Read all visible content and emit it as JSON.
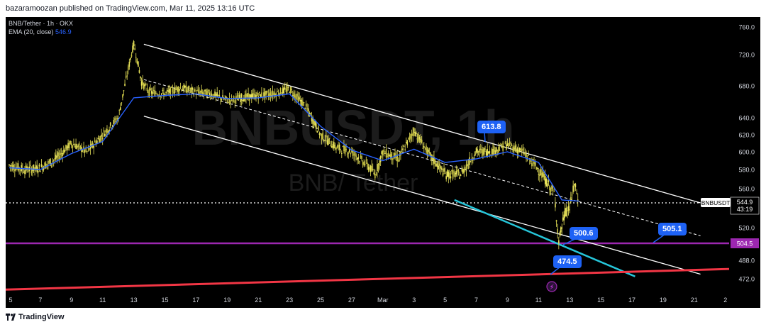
{
  "header": {
    "text": "bazaramoozan published on TradingView.com, Mar 11, 2025 13:16 UTC"
  },
  "legend": {
    "line1": "BNB/Tether · 1h · OKX",
    "ema_label": "EMA (20, close)",
    "ema_value": "546.9"
  },
  "watermark": {
    "symbol": "BNBUSDT, 1h",
    "name": "BNB/ Tether"
  },
  "footer": {
    "logo_text": "TradingView"
  },
  "price_tags": {
    "symbol_tag": "BNBUSDT",
    "last_price": "544.9",
    "countdown": "43:19",
    "support_price": "504.5"
  },
  "callouts": [
    "613.8",
    "500.6",
    "505.1",
    "474.5"
  ],
  "colors": {
    "background": "#000000",
    "candle_up": "#e8e35a",
    "candle_down": "#e8e35a",
    "ema": "#2962ff",
    "channel": "#ffffff",
    "support_line": "#9c27b0",
    "trend_line": "#f23645",
    "teal_line": "#26c6da",
    "callout": "#1e62f5"
  },
  "chart_data": {
    "type": "candlestick",
    "title": "BNB/Tether · 1h · OKX",
    "xlabel": "",
    "ylabel": "",
    "ylim": [
      455,
      775
    ],
    "x_tick_labels": [
      "5",
      "7",
      "9",
      "11",
      "13",
      "15",
      "17",
      "19",
      "21",
      "23",
      "25",
      "27",
      "Mar",
      "3",
      "5",
      "7",
      "9",
      "11",
      "13",
      "15",
      "17",
      "19",
      "21",
      "2"
    ],
    "y_tick_labels": [
      "760.0",
      "720.0",
      "680.0",
      "640.0",
      "620.0",
      "600.0",
      "580.0",
      "560.0",
      "520.0",
      "504.5",
      "488.0",
      "472.0"
    ],
    "grid": false,
    "series": [
      {
        "name": "BNBUSDT",
        "price_path": [
          [
            5,
            585
          ],
          [
            6,
            580
          ],
          [
            7,
            582
          ],
          [
            8,
            592
          ],
          [
            9,
            610
          ],
          [
            10,
            600
          ],
          [
            11,
            620
          ],
          [
            12,
            640
          ],
          [
            13,
            735
          ],
          [
            13.5,
            685
          ],
          [
            14,
            672
          ],
          [
            15,
            670
          ],
          [
            16,
            678
          ],
          [
            17,
            672
          ],
          [
            18,
            670
          ],
          [
            19,
            662
          ],
          [
            20,
            665
          ],
          [
            21,
            668
          ],
          [
            22,
            670
          ],
          [
            23,
            676
          ],
          [
            24,
            655
          ],
          [
            25,
            620
          ],
          [
            26,
            605
          ],
          [
            27,
            600
          ],
          [
            28,
            585
          ],
          [
            28.5,
            575
          ],
          [
            29,
            600
          ],
          [
            30,
            592
          ],
          [
            31,
            625
          ],
          [
            32,
            596
          ],
          [
            33,
            575
          ],
          [
            34,
            575
          ],
          [
            35,
            600
          ],
          [
            36,
            601
          ],
          [
            37,
            608
          ],
          [
            38,
            600
          ],
          [
            39,
            580
          ],
          [
            40,
            555
          ],
          [
            40.3,
            507
          ],
          [
            40.7,
            535
          ],
          [
            41,
            540
          ],
          [
            41.3,
            565
          ],
          [
            41.6,
            544.9
          ]
        ]
      },
      {
        "name": "EMA (20, close)",
        "price_path": [
          [
            5,
            582
          ],
          [
            7,
            580
          ],
          [
            9,
            598
          ],
          [
            11,
            612
          ],
          [
            13,
            665
          ],
          [
            15,
            668
          ],
          [
            17,
            670
          ],
          [
            19,
            664
          ],
          [
            21,
            665
          ],
          [
            23,
            670
          ],
          [
            25,
            630
          ],
          [
            27,
            602
          ],
          [
            29,
            590
          ],
          [
            31,
            603
          ],
          [
            33,
            588
          ],
          [
            35,
            592
          ],
          [
            37,
            600
          ],
          [
            39,
            588
          ],
          [
            40.5,
            548
          ],
          [
            41.6,
            546.9
          ]
        ]
      }
    ],
    "annotations": [
      {
        "label": "613.8",
        "kind": "price label"
      },
      {
        "label": "500.6",
        "kind": "price label"
      },
      {
        "label": "505.1",
        "kind": "price label"
      },
      {
        "label": "474.5",
        "kind": "price label"
      }
    ],
    "horizontal_lines": [
      {
        "value": 544.9,
        "style": "dotted",
        "color": "#ffffff"
      },
      {
        "value": 504.5,
        "style": "solid",
        "color": "#9c27b0"
      }
    ],
    "trend_lines": [
      {
        "name": "channel upper",
        "from": [
          13,
          735
        ],
        "to": [
          22,
          545
        ]
      },
      {
        "name": "channel middle",
        "from": [
          13,
          690
        ],
        "to": [
          22,
          510
        ]
      },
      {
        "name": "channel lower",
        "from": [
          13,
          645
        ],
        "to": [
          21,
          475
        ]
      },
      {
        "name": "teal support",
        "from": [
          34,
          547
        ],
        "to": [
          18,
          474
        ]
      },
      {
        "name": "rising trend",
        "from": [
          5,
          462
        ],
        "to": [
          22,
          480
        ]
      }
    ]
  }
}
